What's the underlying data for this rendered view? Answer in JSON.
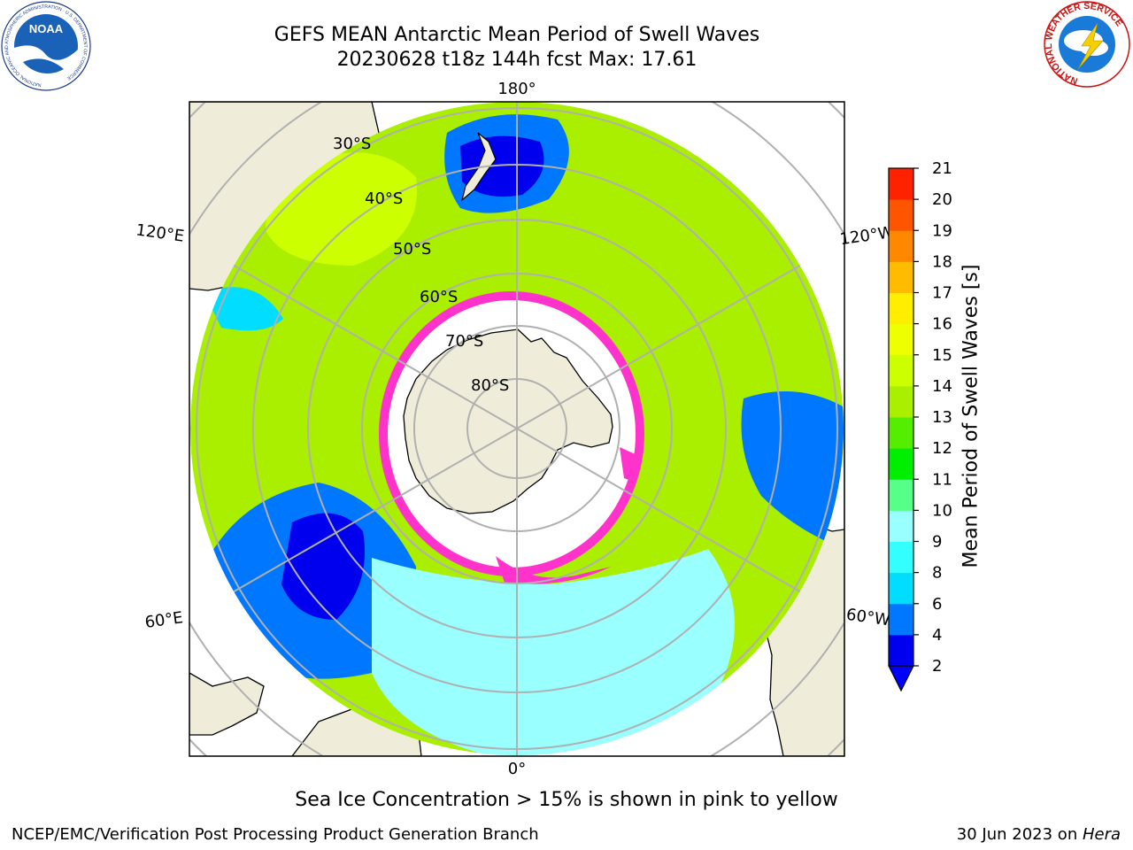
{
  "title": {
    "line1": "GEFS MEAN Antarctic Mean Period of Swell Waves",
    "line2": "20230628 t18z 144h fcst   Max: 17.61"
  },
  "map": {
    "projection": "south-polar-stereographic",
    "longitude_labels": {
      "top": "180°",
      "bottom": "0°",
      "upper_left": "120°E",
      "lower_left": "60°E",
      "upper_right": "120°W",
      "lower_right": "60°W"
    },
    "latitude_labels": [
      "30°S",
      "40°S",
      "50°S",
      "60°S",
      "70°S",
      "80°S"
    ],
    "ocean_regions": [
      {
        "region": "mid-latitude Indian/Pacific ocean",
        "period_s": 12
      },
      {
        "region": "south of Australia",
        "period_s": 14
      },
      {
        "region": "south-west Pacific near New Zealand",
        "period_s": 5
      },
      {
        "region": "south Indian ocean near Kerguelen",
        "period_s": 4
      },
      {
        "region": "south Atlantic",
        "period_s": 9
      },
      {
        "region": "east Pacific off South America",
        "period_s": 4
      }
    ],
    "sea_ice_color": "#ff33cc",
    "land_color": "#efedda",
    "graticule_color": "#b0b0b0"
  },
  "colorbar": {
    "label": "Mean Period of Swell Waves [s]",
    "ticks": [
      "2",
      "4",
      "6",
      "8",
      "9",
      "10",
      "11",
      "12",
      "13",
      "14",
      "15",
      "16",
      "17",
      "18",
      "19",
      "20",
      "21"
    ],
    "colors": [
      "#0000ee",
      "#0077ff",
      "#00ddff",
      "#33ffff",
      "#99ffff",
      "#55ff88",
      "#00ee00",
      "#55ee00",
      "#aaee00",
      "#ccff00",
      "#eeff00",
      "#ffee00",
      "#ffbb00",
      "#ff8800",
      "#ff5500",
      "#ff2200"
    ],
    "under_color": "#0000ff"
  },
  "subtitle": "Sea Ice Concentration > 15% is shown in pink to yellow",
  "footer": {
    "left": "NCEP/EMC/Verification Post Processing Product Generation Branch",
    "date": "30 Jun 2023 on ",
    "host": "Hera"
  },
  "logos": {
    "noaa_text": "NOAA",
    "noaa_ring": "NATIONAL OCEANIC AND ATMOSPHERIC ADMINISTRATION · U.S. DEPARTMENT OF COMMERCE",
    "nws_ring": "NATIONAL WEATHER SERVICE"
  }
}
